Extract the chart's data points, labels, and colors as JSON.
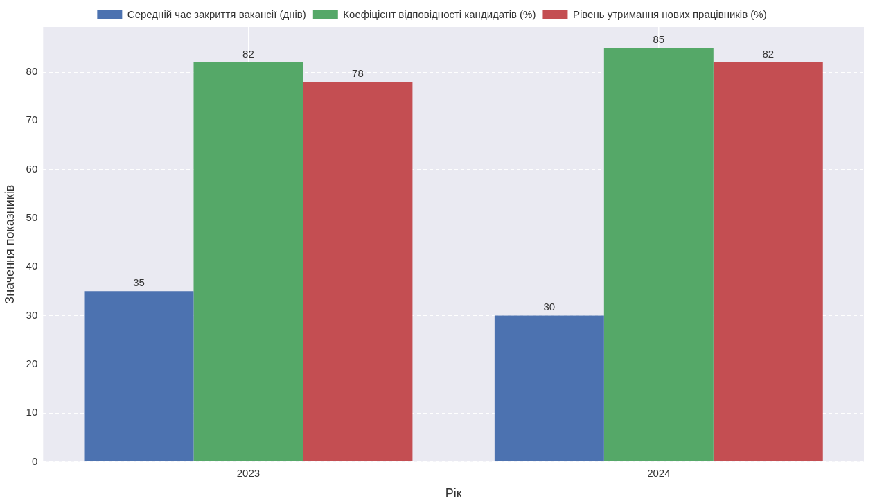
{
  "chart_data": {
    "type": "bar",
    "xlabel": "Рік",
    "ylabel": "Значення показників",
    "categories": [
      "2023",
      "2024"
    ],
    "series": [
      {
        "name": "Середній час закриття вакансії (днів)",
        "color": "#4c72b0",
        "values": [
          35,
          30
        ]
      },
      {
        "name": "Коефіцієнт відповідності кандидатів (%)",
        "color": "#55a868",
        "values": [
          82,
          85
        ]
      },
      {
        "name": "Рівень утримання нових працівників (%)",
        "color": "#c44e52",
        "values": [
          78,
          82
        ]
      }
    ],
    "ylim": [
      0,
      89.25
    ],
    "yticks": [
      0,
      10,
      20,
      30,
      40,
      50,
      60,
      70,
      80
    ],
    "grid": true,
    "legend": "top",
    "data_labels": true
  }
}
